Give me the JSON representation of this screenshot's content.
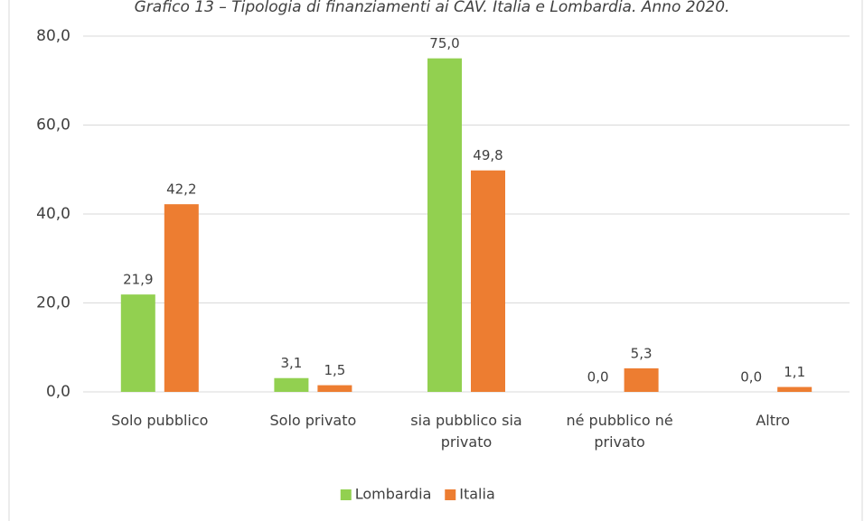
{
  "chart_data": {
    "type": "bar",
    "title": "Grafico 13 – Tipologia di finanziamenti ai CAV. Italia e Lombardia. Anno 2020.",
    "categories": [
      "Solo pubblico",
      "Solo privato",
      "sia pubblico sia privato",
      "né pubblico né privato",
      "Altro"
    ],
    "series": [
      {
        "name": "Lombardia",
        "color": "#92d050",
        "values": [
          21.9,
          3.1,
          75.0,
          0.0,
          0.0
        ],
        "value_labels": [
          "21,9",
          "3,1",
          "75,0",
          "0,0",
          "0,0"
        ]
      },
      {
        "name": "Italia",
        "color": "#ed7d31",
        "values": [
          42.2,
          1.5,
          49.8,
          5.3,
          1.1
        ],
        "value_labels": [
          "42,2",
          "1,5",
          "49,8",
          "5,3",
          "1,1"
        ]
      }
    ],
    "ylim": [
      0,
      80
    ],
    "yticks": [
      {
        "value": 0,
        "label": "0,0"
      },
      {
        "value": 20,
        "label": "20,0"
      },
      {
        "value": 40,
        "label": "40,0"
      },
      {
        "value": 60,
        "label": "60,0"
      },
      {
        "value": 80,
        "label": "80,0"
      }
    ],
    "grid": true,
    "legend": "bottom"
  }
}
